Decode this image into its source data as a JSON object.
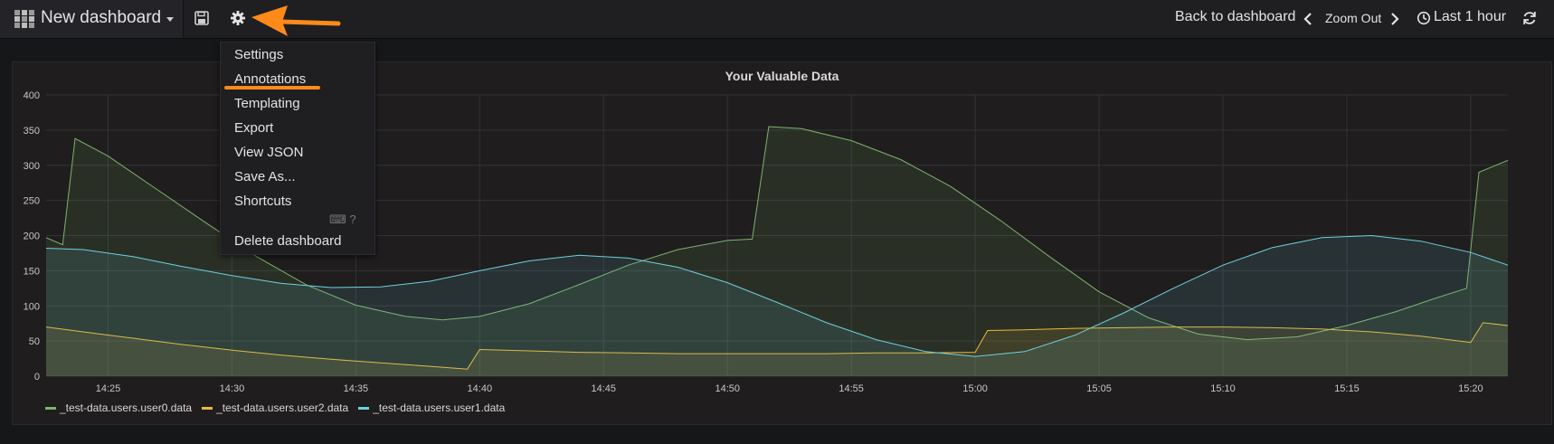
{
  "header": {
    "dashboard_title": "New dashboard",
    "back_label": "Back to dashboard",
    "zoom_out_label": "Zoom Out",
    "time_range_label": "Last 1 hour"
  },
  "settings_menu": {
    "items": [
      "Settings",
      "Annotations",
      "Templating",
      "Export",
      "View JSON",
      "Save As...",
      "Shortcuts"
    ],
    "shortcut_hint": "⌨ ?",
    "delete_label": "Delete dashboard",
    "highlight": "Annotations",
    "accent_color": "#ff8a1a"
  },
  "icons": {
    "brand": "grafana-dashboard-grid-icon",
    "save": "save-floppy-icon",
    "settings": "gear-icon",
    "arrow": "orange-pointer-arrow",
    "time": "clock-icon",
    "refresh": "refresh-icon"
  },
  "chart_data": {
    "type": "area",
    "title": "Your Valuable Data",
    "xlabel": "",
    "ylabel": "",
    "x_range": [
      "14:22:30",
      "15:21:30"
    ],
    "ylim": [
      0,
      400
    ],
    "y_ticks": [
      0,
      50,
      100,
      150,
      200,
      250,
      300,
      350,
      400
    ],
    "x_ticks": [
      "14:25",
      "14:30",
      "14:35",
      "14:40",
      "14:45",
      "14:50",
      "14:55",
      "15:00",
      "15:05",
      "15:10",
      "15:15",
      "15:20"
    ],
    "grid": true,
    "legend_position": "bottom-left",
    "series": [
      {
        "name": "_test-data.users.user0.data",
        "color": "#7eb26d",
        "points": [
          [
            "14:22:30",
            197
          ],
          [
            "14:23:10",
            187
          ],
          [
            "14:23:40",
            338
          ],
          [
            "14:25:00",
            313
          ],
          [
            "14:27:00",
            265
          ],
          [
            "14:29:00",
            217
          ],
          [
            "14:31:00",
            170
          ],
          [
            "14:33:00",
            130
          ],
          [
            "14:35:00",
            101
          ],
          [
            "14:37:00",
            85
          ],
          [
            "14:38:30",
            80
          ],
          [
            "14:40:00",
            85
          ],
          [
            "14:42:00",
            103
          ],
          [
            "14:44:00",
            130
          ],
          [
            "14:46:00",
            158
          ],
          [
            "14:48:00",
            180
          ],
          [
            "14:50:00",
            193
          ],
          [
            "14:51:00",
            195
          ],
          [
            "14:51:40",
            355
          ],
          [
            "14:53:00",
            352
          ],
          [
            "14:55:00",
            335
          ],
          [
            "14:57:00",
            308
          ],
          [
            "14:59:00",
            270
          ],
          [
            "15:01:00",
            222
          ],
          [
            "15:03:00",
            170
          ],
          [
            "15:05:00",
            120
          ],
          [
            "15:07:00",
            83
          ],
          [
            "15:09:00",
            60
          ],
          [
            "15:11:00",
            52
          ],
          [
            "15:13:00",
            56
          ],
          [
            "15:15:00",
            72
          ],
          [
            "15:17:00",
            92
          ],
          [
            "15:18:30",
            110
          ],
          [
            "15:19:50",
            125
          ],
          [
            "15:20:20",
            290
          ],
          [
            "15:21:30",
            307
          ]
        ]
      },
      {
        "name": "_test-data.users.user2.data",
        "color": "#eab839",
        "points": [
          [
            "14:22:30",
            70
          ],
          [
            "14:24:00",
            63
          ],
          [
            "14:26:00",
            54
          ],
          [
            "14:28:00",
            45
          ],
          [
            "14:30:00",
            37
          ],
          [
            "14:32:00",
            30
          ],
          [
            "14:34:00",
            24
          ],
          [
            "14:36:00",
            19
          ],
          [
            "14:38:00",
            14
          ],
          [
            "14:39:30",
            10
          ],
          [
            "14:40:00",
            38
          ],
          [
            "14:42:00",
            36
          ],
          [
            "14:44:00",
            34
          ],
          [
            "14:46:00",
            33
          ],
          [
            "14:48:00",
            32
          ],
          [
            "14:50:00",
            32
          ],
          [
            "14:52:00",
            32
          ],
          [
            "14:54:00",
            32
          ],
          [
            "14:56:00",
            33
          ],
          [
            "14:58:00",
            33
          ],
          [
            "15:00:00",
            34
          ],
          [
            "15:00:30",
            65
          ],
          [
            "15:02:00",
            66
          ],
          [
            "15:04:00",
            68
          ],
          [
            "15:06:00",
            69
          ],
          [
            "15:08:00",
            70
          ],
          [
            "15:10:00",
            70
          ],
          [
            "15:12:00",
            69
          ],
          [
            "15:14:00",
            67
          ],
          [
            "15:16:00",
            63
          ],
          [
            "15:18:00",
            57
          ],
          [
            "15:20:00",
            48
          ],
          [
            "15:20:30",
            76
          ],
          [
            "15:21:30",
            72
          ]
        ]
      },
      {
        "name": "_test-data.users.user1.data",
        "color": "#6ed0e0",
        "points": [
          [
            "14:22:30",
            182
          ],
          [
            "14:24:00",
            180
          ],
          [
            "14:26:00",
            170
          ],
          [
            "14:28:00",
            156
          ],
          [
            "14:30:00",
            143
          ],
          [
            "14:32:00",
            132
          ],
          [
            "14:34:00",
            126
          ],
          [
            "14:36:00",
            127
          ],
          [
            "14:38:00",
            135
          ],
          [
            "14:40:00",
            150
          ],
          [
            "14:42:00",
            164
          ],
          [
            "14:44:00",
            172
          ],
          [
            "14:46:00",
            168
          ],
          [
            "14:48:00",
            155
          ],
          [
            "14:50:00",
            133
          ],
          [
            "14:52:00",
            105
          ],
          [
            "14:54:00",
            76
          ],
          [
            "14:56:00",
            52
          ],
          [
            "14:58:00",
            35
          ],
          [
            "15:00:00",
            28
          ],
          [
            "15:02:00",
            35
          ],
          [
            "15:04:00",
            58
          ],
          [
            "15:06:00",
            90
          ],
          [
            "15:08:00",
            125
          ],
          [
            "15:10:00",
            158
          ],
          [
            "15:12:00",
            183
          ],
          [
            "15:14:00",
            197
          ],
          [
            "15:16:00",
            200
          ],
          [
            "15:18:00",
            192
          ],
          [
            "15:20:00",
            176
          ],
          [
            "15:21:30",
            158
          ]
        ]
      }
    ]
  }
}
